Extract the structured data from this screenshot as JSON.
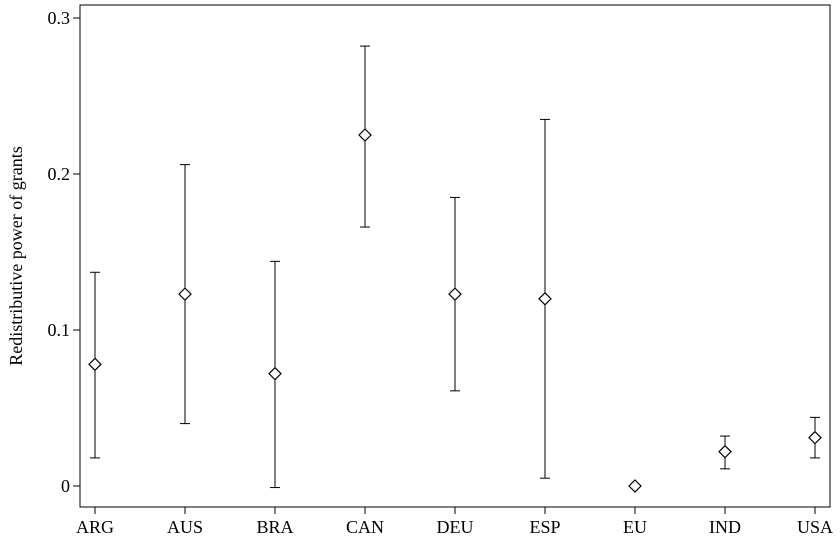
{
  "chart_data": {
    "type": "scatter",
    "title": "",
    "xlabel": "",
    "ylabel": "Redistributive power of grants",
    "ylim": [
      0,
      0.3
    ],
    "yticks": [
      0,
      0.1,
      0.2,
      0.3
    ],
    "ytick_labels": [
      "0",
      "0.1",
      "0.2",
      "0.3"
    ],
    "grid": false,
    "categories": [
      "ARG",
      "AUS",
      "BRA",
      "CAN",
      "DEU",
      "ESP",
      "EU",
      "IND",
      "USA"
    ],
    "points": [
      {
        "category": "ARG",
        "y": 0.078,
        "low": 0.018,
        "high": 0.137
      },
      {
        "category": "AUS",
        "y": 0.123,
        "low": 0.04,
        "high": 0.206
      },
      {
        "category": "BRA",
        "y": 0.072,
        "low": -0.001,
        "high": 0.144
      },
      {
        "category": "CAN",
        "y": 0.225,
        "low": 0.166,
        "high": 0.282
      },
      {
        "category": "DEU",
        "y": 0.123,
        "low": 0.061,
        "high": 0.185
      },
      {
        "category": "ESP",
        "y": 0.12,
        "low": 0.005,
        "high": 0.235
      },
      {
        "category": "EU",
        "y": 0.0,
        "low": null,
        "high": null
      },
      {
        "category": "IND",
        "y": 0.022,
        "low": 0.011,
        "high": 0.032
      },
      {
        "category": "USA",
        "y": 0.031,
        "low": 0.018,
        "high": 0.044
      }
    ],
    "marker": "hollow-diamond",
    "colors": {
      "line": "#000000",
      "marker_fill": "#ffffff"
    }
  }
}
